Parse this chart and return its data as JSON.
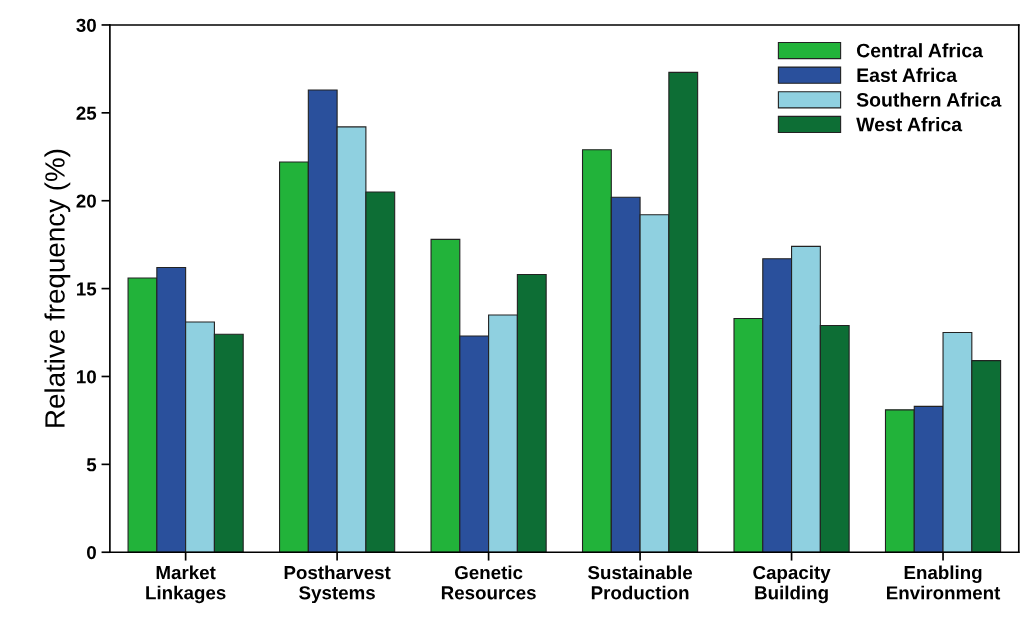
{
  "chart_data": {
    "type": "bar",
    "ylabel": "Relative frequency (%)",
    "categories": [
      "Market\nLinkages",
      "Postharvest\nSystems",
      "Genetic\nResources",
      "Sustainable\nProduction",
      "Capacity\nBuilding",
      "Enabling\nEnvironment"
    ],
    "series": [
      {
        "name": "Central Africa",
        "color": "#22b33a",
        "values": [
          15.6,
          22.2,
          17.8,
          22.9,
          13.3,
          8.1
        ]
      },
      {
        "name": "East Africa",
        "color": "#2a509c",
        "values": [
          16.2,
          26.3,
          12.3,
          20.2,
          16.7,
          8.3
        ]
      },
      {
        "name": "Southern Africa",
        "color": "#8fd0e0",
        "values": [
          13.1,
          24.2,
          13.5,
          19.2,
          17.4,
          12.5
        ]
      },
      {
        "name": "West Africa",
        "color": "#0d6e35",
        "values": [
          12.4,
          20.5,
          15.8,
          27.3,
          12.9,
          10.9
        ]
      }
    ],
    "ylim": [
      0,
      30
    ],
    "yticks": [
      0,
      5,
      10,
      15,
      20,
      25,
      30
    ],
    "grid": false,
    "legend": "top right"
  }
}
